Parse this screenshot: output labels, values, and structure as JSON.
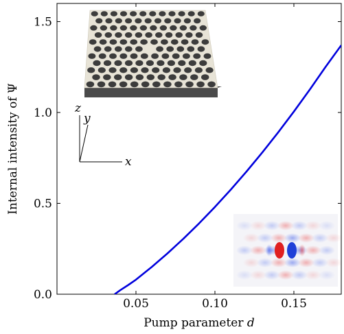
{
  "chart_data": {
    "type": "line",
    "xlabel_text": "Pump parameter ",
    "xlabel_var": "d",
    "ylabel": "Internal intensity of Ψ",
    "xlim": [
      0.0,
      0.18
    ],
    "ylim": [
      0.0,
      1.6
    ],
    "xticks": [
      0.05,
      0.1,
      0.15
    ],
    "xtick_labels": [
      "0.05",
      "0.10",
      "0.15"
    ],
    "yticks": [
      0.0,
      0.5,
      1.0,
      1.5
    ],
    "ytick_labels": [
      "0.0",
      "0.5",
      "1.0",
      "1.5"
    ],
    "grid": false,
    "series": [
      {
        "color": "#0000dd",
        "x": [
          0.0365,
          0.04,
          0.045,
          0.05,
          0.06,
          0.07,
          0.08,
          0.09,
          0.1,
          0.11,
          0.12,
          0.13,
          0.14,
          0.15,
          0.16,
          0.17,
          0.18
        ],
        "y": [
          0.0,
          0.022,
          0.05,
          0.08,
          0.15,
          0.225,
          0.305,
          0.39,
          0.48,
          0.575,
          0.675,
          0.78,
          0.89,
          1.005,
          1.125,
          1.25,
          1.37
        ]
      }
    ]
  },
  "insets": {
    "coordinate_axes": {
      "x": "x",
      "y": "y",
      "z": "z"
    },
    "lattice_icon": "photonic-crystal-slab-icon",
    "field_icon": "field-distribution-heatmap-icon"
  }
}
